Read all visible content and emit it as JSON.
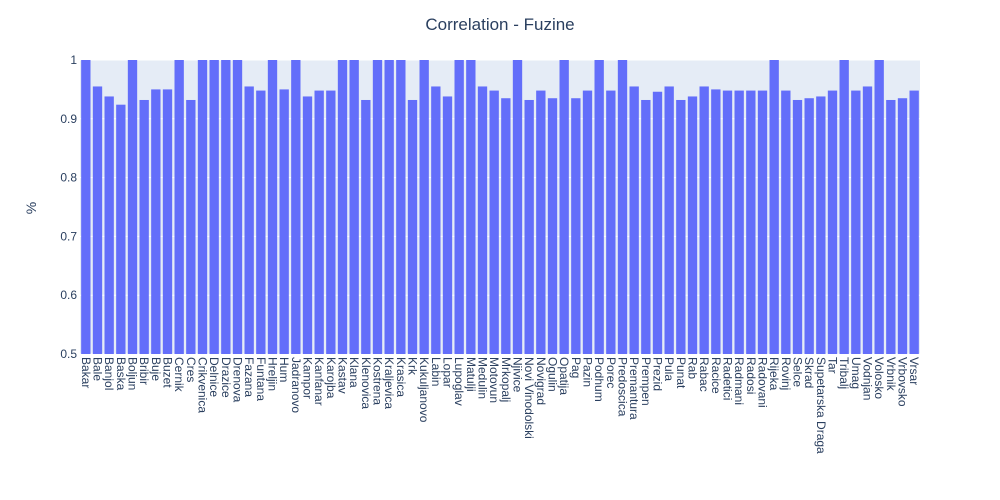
{
  "chart_data": {
    "type": "bar",
    "title": "Correlation - Fuzine",
    "xlabel": "",
    "ylabel": "%",
    "ylim": [
      0.5,
      1.0
    ],
    "yticks": [
      0.5,
      0.6,
      0.7,
      0.8,
      0.9,
      1
    ],
    "ytick_labels": [
      "0.5",
      "0.6",
      "0.7",
      "0.8",
      "0.9",
      "1"
    ],
    "grid": true,
    "legend": "none",
    "bar_color": "#636efa",
    "plot_background": "#e5ecf6",
    "categories": [
      "Bakar",
      "Bale",
      "Banjol",
      "Baska",
      "Boljun",
      "Bribir",
      "Buje",
      "Buzet",
      "Cernik",
      "Cres",
      "Crikvenica",
      "Delnice",
      "Drazice",
      "Drenova",
      "Fazana",
      "Funtana",
      "Hreljin",
      "Hum",
      "Jadranovo",
      "Kampor",
      "Kanfanar",
      "Karojba",
      "Kastav",
      "Klana",
      "Klenovica",
      "Kostrena",
      "Kraljevica",
      "Krasica",
      "Krk",
      "Kukuljanovo",
      "Labin",
      "Lopar",
      "Lupoglav",
      "Matulji",
      "Medulin",
      "Motovun",
      "Mrkopalj",
      "Njivice",
      "Novi Vinodolski",
      "Novigrad",
      "Ogulin",
      "Opatija",
      "Pag",
      "Pazin",
      "Podhum",
      "Porec",
      "Predoscica",
      "Premantura",
      "Prempen",
      "Prezid",
      "Pula",
      "Punat",
      "Rab",
      "Rabac",
      "Racice",
      "Radetici",
      "Radmani",
      "Radosi",
      "Radovani",
      "Rijeka",
      "Rovinj",
      "Selce",
      "Skrad",
      "Supetarska Draga",
      "Tar",
      "Tribalj",
      "Umag",
      "Vodnjan",
      "Volosko",
      "Vrbnik",
      "Vrbovsko",
      "Vrsar"
    ],
    "values": [
      1.0,
      0.955,
      0.938,
      0.924,
      1.0,
      0.932,
      0.95,
      0.95,
      1.0,
      0.932,
      1.0,
      1.0,
      1.0,
      1.0,
      0.955,
      0.948,
      1.0,
      0.95,
      1.0,
      0.938,
      0.948,
      0.948,
      1.0,
      1.0,
      0.932,
      1.0,
      1.0,
      1.0,
      0.932,
      1.0,
      0.955,
      0.938,
      1.0,
      1.0,
      0.955,
      0.948,
      0.935,
      1.0,
      0.932,
      0.948,
      0.935,
      1.0,
      0.935,
      0.948,
      1.0,
      0.948,
      1.0,
      0.955,
      0.932,
      0.946,
      0.955,
      0.932,
      0.938,
      0.955,
      0.95,
      0.948,
      0.948,
      0.948,
      0.948,
      1.0,
      0.948,
      0.932,
      0.935,
      0.938,
      0.948,
      1.0,
      0.948,
      0.955,
      1.0,
      0.932,
      0.935,
      0.948
    ]
  }
}
